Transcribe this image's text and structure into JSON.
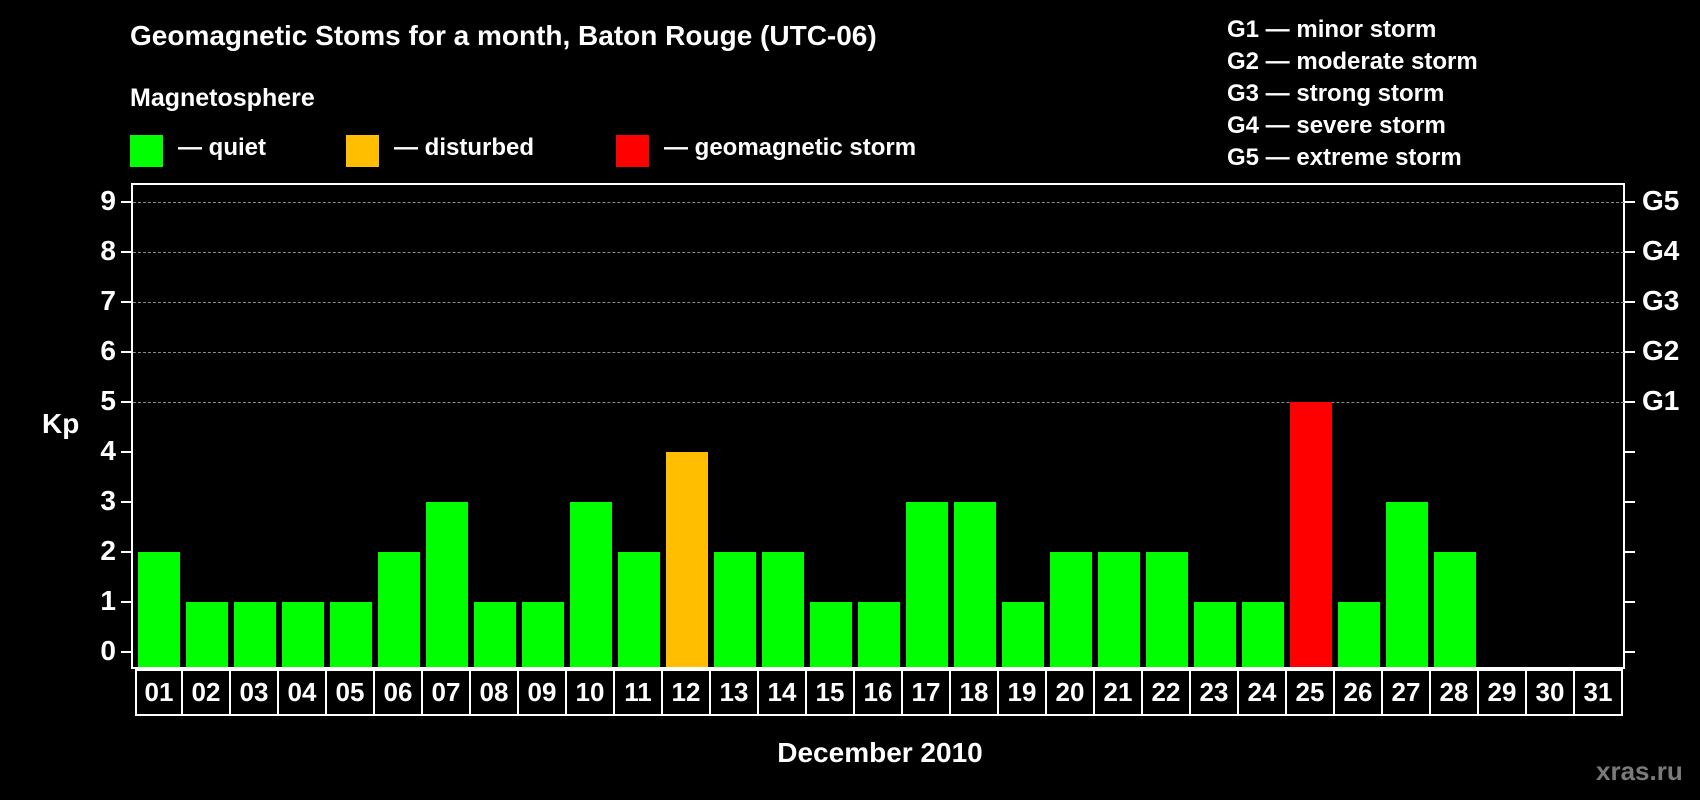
{
  "header": {
    "title": "Geomagnetic Stoms for a month, Baton Rouge (UTC-06)",
    "subtitle": "Magnetosphere"
  },
  "legend": [
    {
      "label": "— quiet",
      "color": "#00ff00"
    },
    {
      "label": "— disturbed",
      "color": "#ffbf00"
    },
    {
      "label": "— geomagnetic storm",
      "color": "#ff0000"
    }
  ],
  "storm_scale": [
    "G1 — minor storm",
    "G2 — moderate storm",
    "G3 — strong storm",
    "G4 — severe storm",
    "G5 — extreme storm"
  ],
  "axes": {
    "ylabel": "Kp",
    "xlabel": "December 2010",
    "yticks": [
      "0",
      "1",
      "2",
      "3",
      "4",
      "5",
      "6",
      "7",
      "8",
      "9"
    ],
    "right_labels": {
      "5": "G1",
      "6": "G2",
      "7": "G3",
      "8": "G4",
      "9": "G5"
    }
  },
  "watermark": "xras.ru",
  "colors": {
    "quiet": "#00ff00",
    "disturbed": "#ffbf00",
    "storm": "#ff0000",
    "background": "#000000",
    "grid": "#8a8a8a"
  },
  "chart_data": {
    "type": "bar",
    "title": "Geomagnetic Stoms for a month, Baton Rouge (UTC-06)",
    "xlabel": "December 2010",
    "ylabel": "Kp",
    "ylim": [
      0,
      9
    ],
    "grid": "dashed horizontal at Kp 5-9",
    "categories": [
      "01",
      "02",
      "03",
      "04",
      "05",
      "06",
      "07",
      "08",
      "09",
      "10",
      "11",
      "12",
      "13",
      "14",
      "15",
      "16",
      "17",
      "18",
      "19",
      "20",
      "21",
      "22",
      "23",
      "24",
      "25",
      "26",
      "27",
      "28",
      "29",
      "30",
      "31"
    ],
    "values": [
      2,
      1,
      1,
      1,
      1,
      2,
      3,
      1,
      1,
      3,
      2,
      4,
      2,
      2,
      1,
      1,
      3,
      3,
      1,
      2,
      2,
      2,
      1,
      1,
      5,
      1,
      3,
      2,
      null,
      null,
      null
    ],
    "status": [
      "quiet",
      "quiet",
      "quiet",
      "quiet",
      "quiet",
      "quiet",
      "quiet",
      "quiet",
      "quiet",
      "quiet",
      "quiet",
      "disturbed",
      "quiet",
      "quiet",
      "quiet",
      "quiet",
      "quiet",
      "quiet",
      "quiet",
      "quiet",
      "quiet",
      "quiet",
      "quiet",
      "quiet",
      "storm",
      "quiet",
      "quiet",
      "quiet",
      null,
      null,
      null
    ],
    "legend": [
      "quiet",
      "disturbed",
      "geomagnetic storm"
    ],
    "right_axis_labels": {
      "5": "G1",
      "6": "G2",
      "7": "G3",
      "8": "G4",
      "9": "G5"
    }
  }
}
